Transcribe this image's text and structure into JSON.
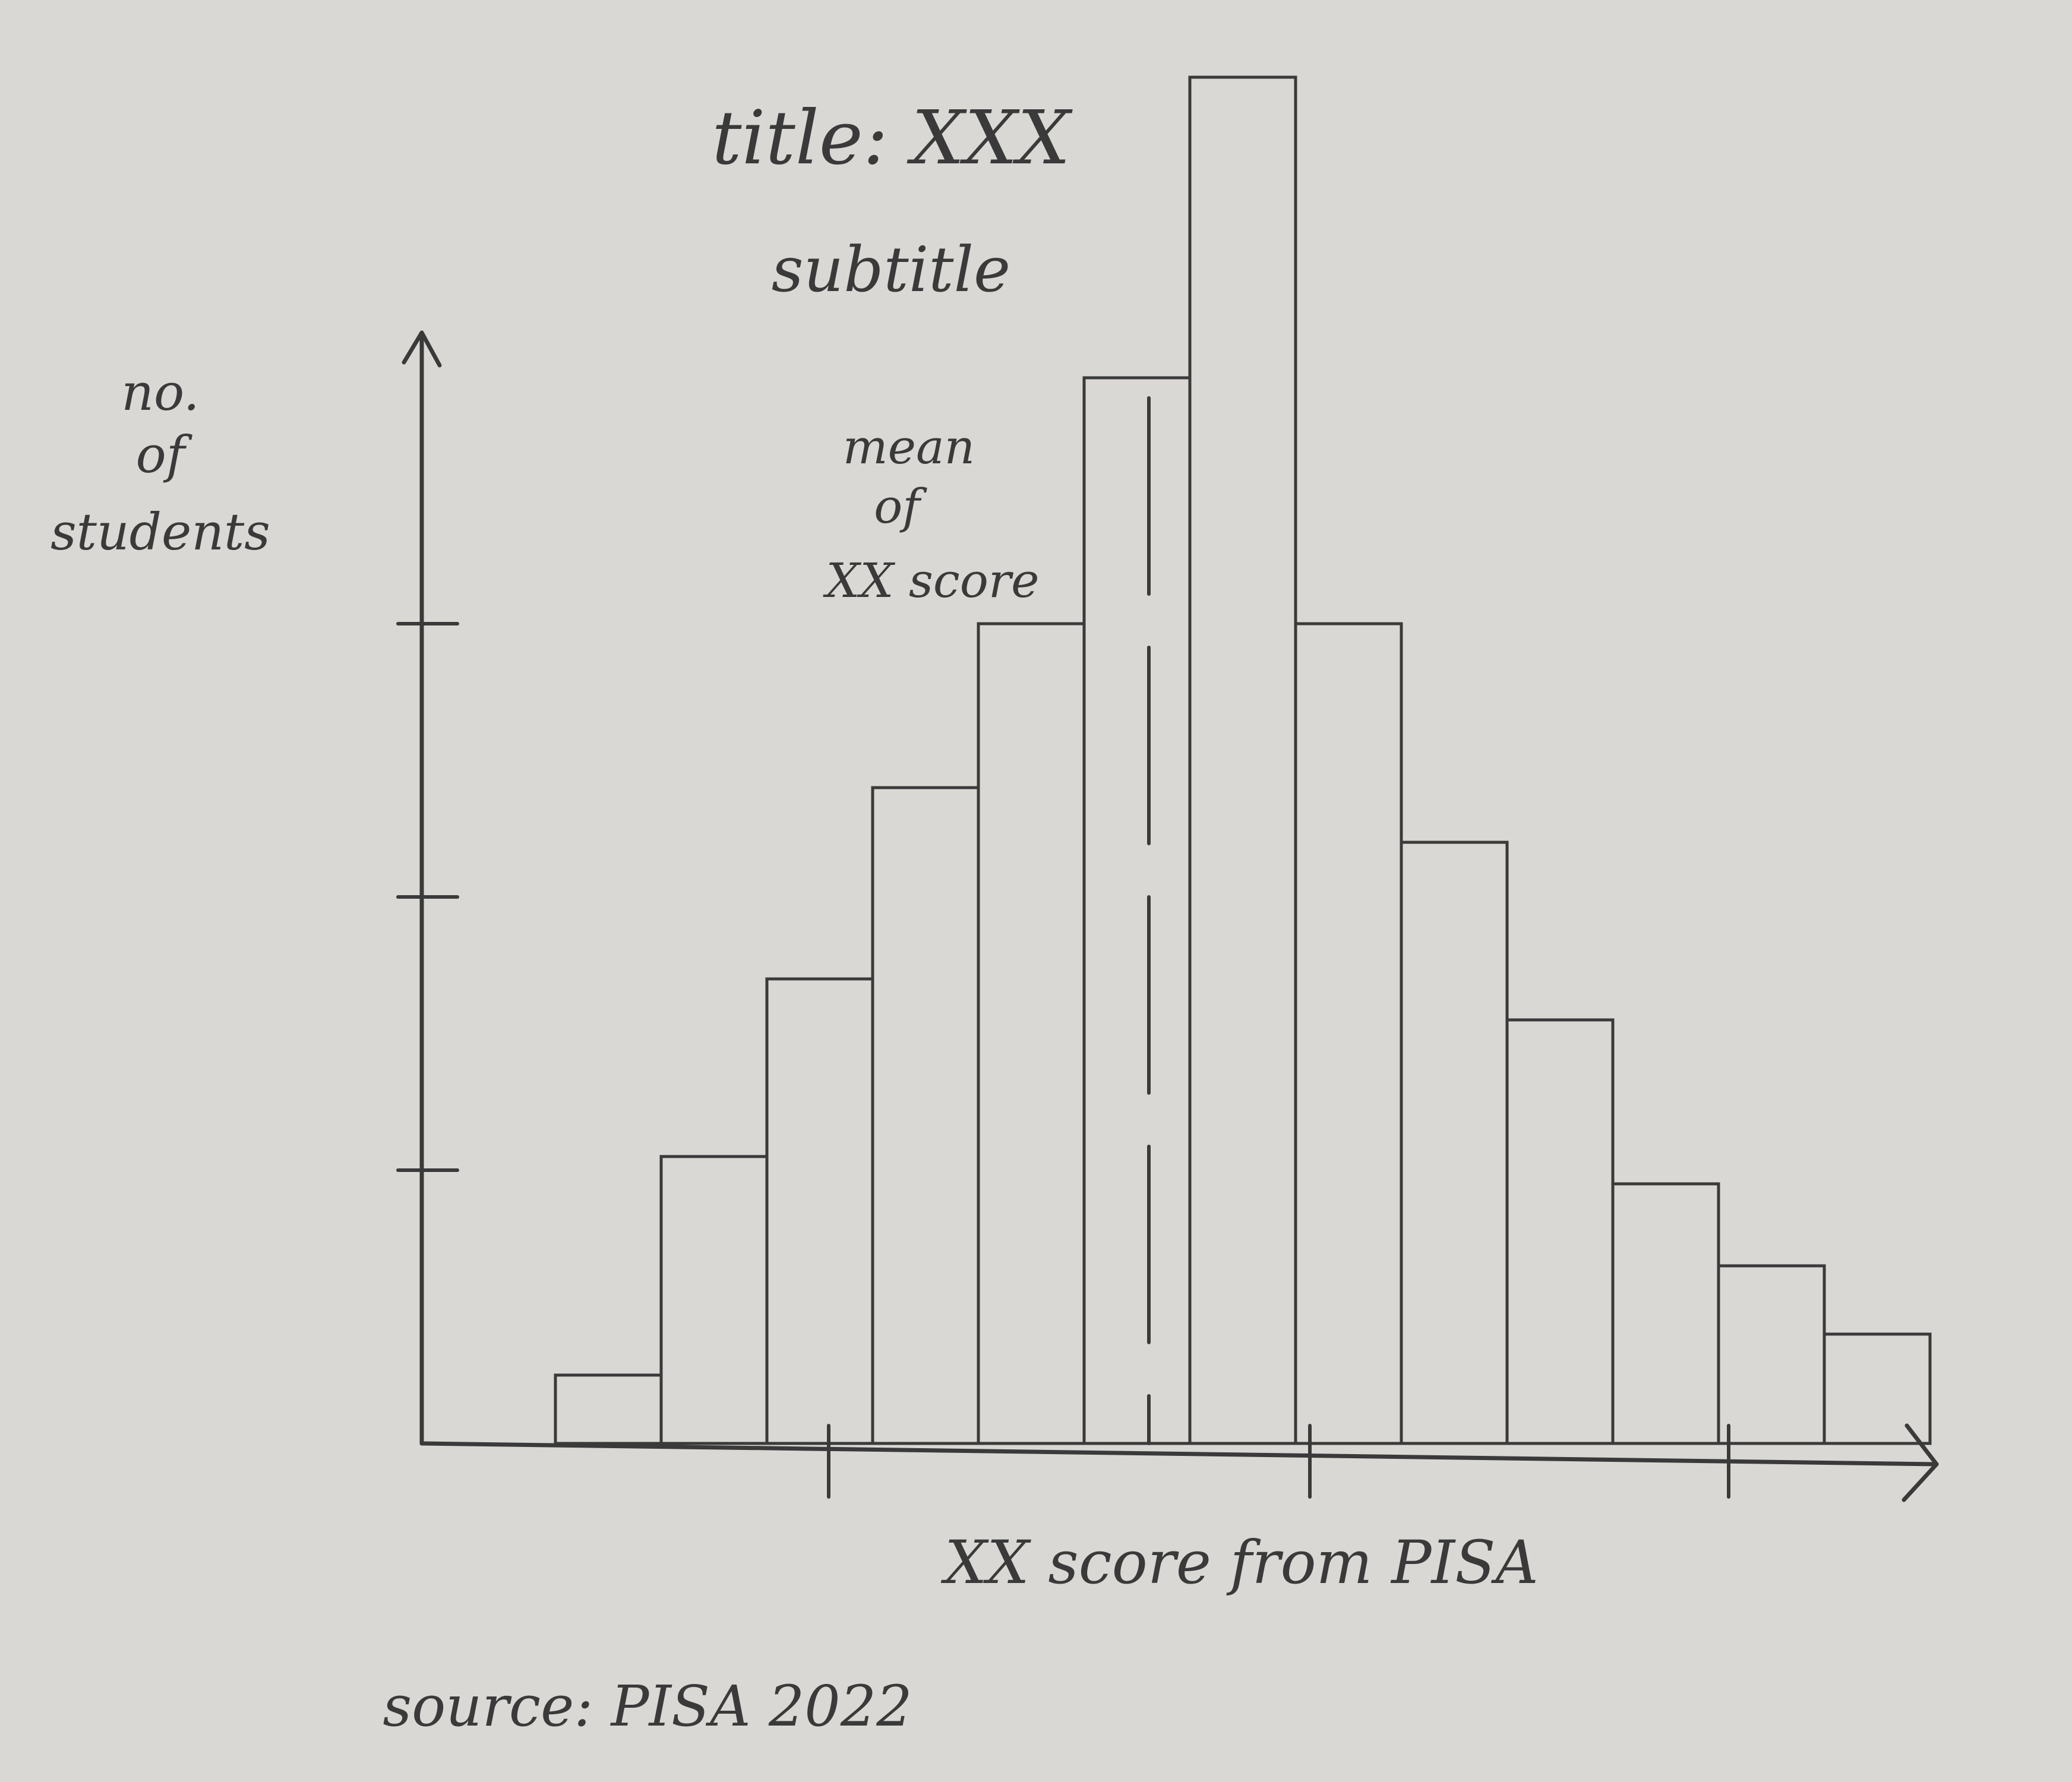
{
  "chart_data": {
    "type": "bar",
    "title": "title: XXX",
    "subtitle": "subtitle",
    "ylabel": [
      "no.",
      "of",
      "students"
    ],
    "xlabel": "XX score from PISA",
    "source": "source: PISA 2022",
    "annotation": [
      "mean",
      "of",
      "XX score"
    ],
    "ylim": [
      0,
      4.2
    ],
    "values": [
      0.25,
      1.05,
      1.7,
      2.4,
      3.0,
      3.9,
      5.0,
      3.0,
      2.2,
      1.55,
      0.95,
      0.65,
      0.4
    ],
    "mean_line_bin": 5.5,
    "grid": false,
    "colors": {
      "ink": "#3a3a3a",
      "paper": "#d9d8d4"
    }
  }
}
